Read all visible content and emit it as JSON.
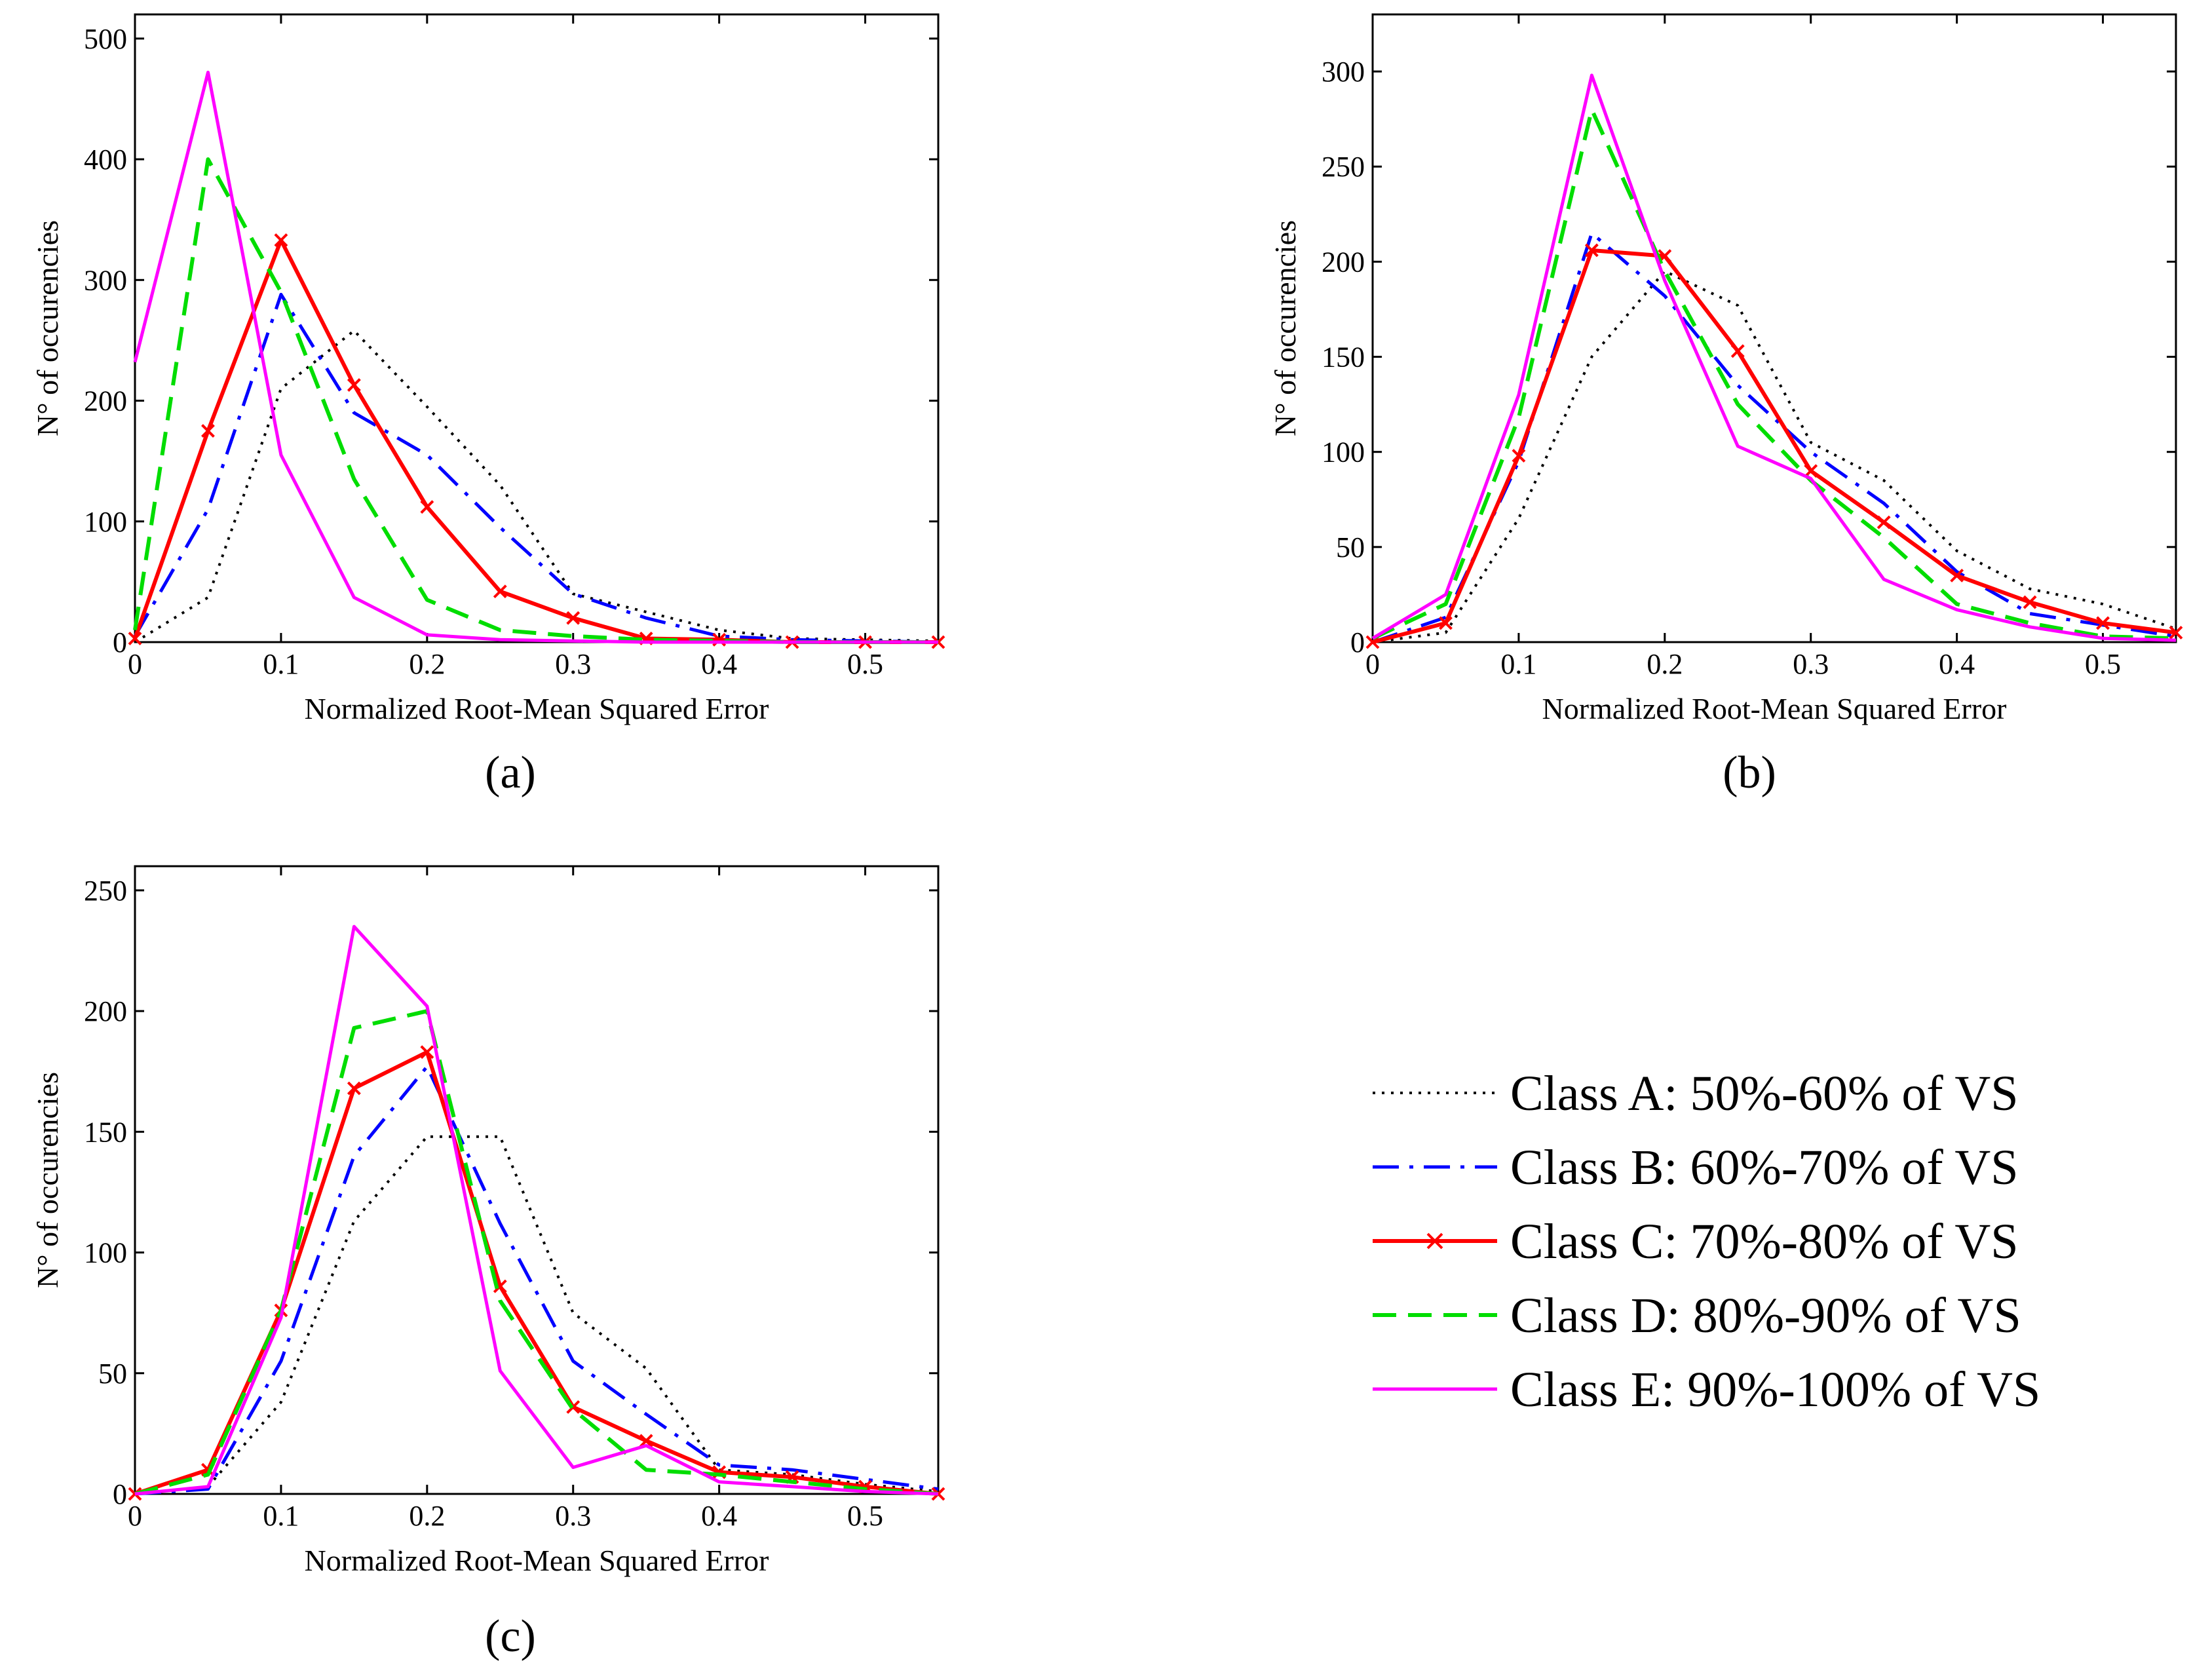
{
  "series_styles": [
    {
      "name": "Class A",
      "color": "#000000",
      "dash": "4 10",
      "width": 4,
      "marker": "none"
    },
    {
      "name": "Class B",
      "color": "#0000ff",
      "dash": "40 16 6 16",
      "width": 5,
      "marker": "none"
    },
    {
      "name": "Class C",
      "color": "#ff0000",
      "dash": "",
      "width": 6,
      "marker": "x"
    },
    {
      "name": "Class D",
      "color": "#00dd00",
      "dash": "36 18",
      "width": 6,
      "marker": "none"
    },
    {
      "name": "Class E",
      "color": "#ff00ff",
      "dash": "",
      "width": 5,
      "marker": "none"
    }
  ],
  "legend": {
    "entries": [
      "Class A: 50%-60% of VS",
      "Class B: 60%-70% of VS",
      "Class C: 70%-80% of VS",
      "Class D: 80%-90% of VS",
      "Class E: 90%-100% of VS"
    ]
  },
  "chart_data": [
    {
      "type": "line",
      "panel_label": "(a)",
      "xlabel": "Normalized Root-Mean Squared Error",
      "ylabel": "N° of occurencies",
      "xlim": [
        0,
        0.55
      ],
      "ylim": [
        0,
        520
      ],
      "xticks": [
        0,
        0.1,
        0.2,
        0.3,
        0.4,
        0.5
      ],
      "xtick_labels": [
        "0",
        "0.1",
        "0.2",
        "0.3",
        "0.4",
        "0.5"
      ],
      "yticks": [
        0,
        100,
        200,
        300,
        400,
        500
      ],
      "ytick_labels": [
        "0",
        "100",
        "200",
        "300",
        "400",
        "500"
      ],
      "x": [
        0,
        0.05,
        0.1,
        0.15,
        0.2,
        0.25,
        0.3,
        0.35,
        0.4,
        0.45,
        0.5,
        0.55
      ],
      "series": [
        {
          "name": "Class A: 50%-60% of VS",
          "values": [
            0,
            37,
            210,
            258,
            195,
            130,
            40,
            25,
            10,
            3,
            2,
            1
          ]
        },
        {
          "name": "Class B: 60%-70% of VS",
          "values": [
            5,
            110,
            288,
            190,
            155,
            95,
            40,
            20,
            5,
            2,
            1,
            0
          ]
        },
        {
          "name": "Class C: 70%-80% of VS",
          "values": [
            3,
            175,
            333,
            213,
            112,
            42,
            20,
            3,
            2,
            0,
            0,
            0
          ]
        },
        {
          "name": "Class D: 80%-90% of VS",
          "values": [
            10,
            400,
            290,
            135,
            35,
            10,
            5,
            2,
            1,
            0,
            0,
            0
          ]
        },
        {
          "name": "Class E: 90%-100% of VS",
          "values": [
            232,
            472,
            155,
            37,
            6,
            2,
            1,
            0,
            0,
            0,
            0,
            0
          ]
        }
      ]
    },
    {
      "type": "line",
      "panel_label": "(b)",
      "xlabel": "Normalized Root-Mean Squared Error",
      "ylabel": "N° of occurencies",
      "xlim": [
        0,
        0.55
      ],
      "ylim": [
        0,
        330
      ],
      "xticks": [
        0,
        0.1,
        0.2,
        0.3,
        0.4,
        0.5
      ],
      "xtick_labels": [
        "0",
        "0.1",
        "0.2",
        "0.3",
        "0.4",
        "0.5"
      ],
      "yticks": [
        0,
        50,
        100,
        150,
        200,
        250,
        300
      ],
      "ytick_labels": [
        "0",
        "50",
        "100",
        "150",
        "200",
        "250",
        "300"
      ],
      "x": [
        0,
        0.05,
        0.1,
        0.15,
        0.2,
        0.25,
        0.3,
        0.35,
        0.4,
        0.45,
        0.5,
        0.55
      ],
      "series": [
        {
          "name": "Class A: 50%-60% of VS",
          "values": [
            0,
            5,
            65,
            150,
            195,
            177,
            105,
            85,
            48,
            28,
            20,
            7
          ]
        },
        {
          "name": "Class B: 60%-70% of VS",
          "values": [
            0,
            13,
            95,
            215,
            182,
            135,
            100,
            73,
            37,
            15,
            9,
            3
          ]
        },
        {
          "name": "Class C: 70%-80% of VS",
          "values": [
            0,
            10,
            98,
            206,
            203,
            153,
            90,
            63,
            35,
            21,
            10,
            5
          ]
        },
        {
          "name": "Class D: 80%-90% of VS",
          "values": [
            2,
            20,
            118,
            280,
            195,
            125,
            85,
            55,
            20,
            10,
            3,
            2
          ]
        },
        {
          "name": "Class E: 90%-100% of VS",
          "values": [
            2,
            25,
            130,
            298,
            190,
            103,
            86,
            33,
            17,
            8,
            2,
            1
          ]
        }
      ]
    },
    {
      "type": "line",
      "panel_label": "(c)",
      "xlabel": "Normalized Root-Mean Squared Error",
      "ylabel": "N° of occurencies",
      "xlim": [
        0,
        0.55
      ],
      "ylim": [
        0,
        260
      ],
      "xticks": [
        0,
        0.1,
        0.2,
        0.3,
        0.4,
        0.5
      ],
      "xtick_labels": [
        "0",
        "0.1",
        "0.2",
        "0.3",
        "0.4",
        "0.5"
      ],
      "yticks": [
        0,
        50,
        100,
        150,
        200,
        250
      ],
      "ytick_labels": [
        "0",
        "50",
        "100",
        "150",
        "200",
        "250"
      ],
      "x": [
        0,
        0.05,
        0.1,
        0.15,
        0.2,
        0.25,
        0.3,
        0.35,
        0.4,
        0.45,
        0.5,
        0.55
      ],
      "series": [
        {
          "name": "Class A: 50%-60% of VS",
          "values": [
            0,
            3,
            38,
            113,
            148,
            148,
            75,
            52,
            10,
            8,
            4,
            1
          ]
        },
        {
          "name": "Class B: 60%-70% of VS",
          "values": [
            0,
            2,
            55,
            140,
            177,
            112,
            55,
            33,
            12,
            10,
            6,
            2
          ]
        },
        {
          "name": "Class C: 70%-80% of VS",
          "values": [
            0,
            10,
            76,
            168,
            183,
            86,
            36,
            22,
            9,
            7,
            3,
            0
          ]
        },
        {
          "name": "Class D: 80%-90% of VS",
          "values": [
            0,
            8,
            76,
            193,
            200,
            80,
            35,
            10,
            8,
            5,
            2,
            0
          ]
        },
        {
          "name": "Class E: 90%-100% of VS",
          "values": [
            0,
            3,
            73,
            235,
            202,
            51,
            11,
            20,
            5,
            3,
            1,
            0
          ]
        }
      ]
    }
  ]
}
